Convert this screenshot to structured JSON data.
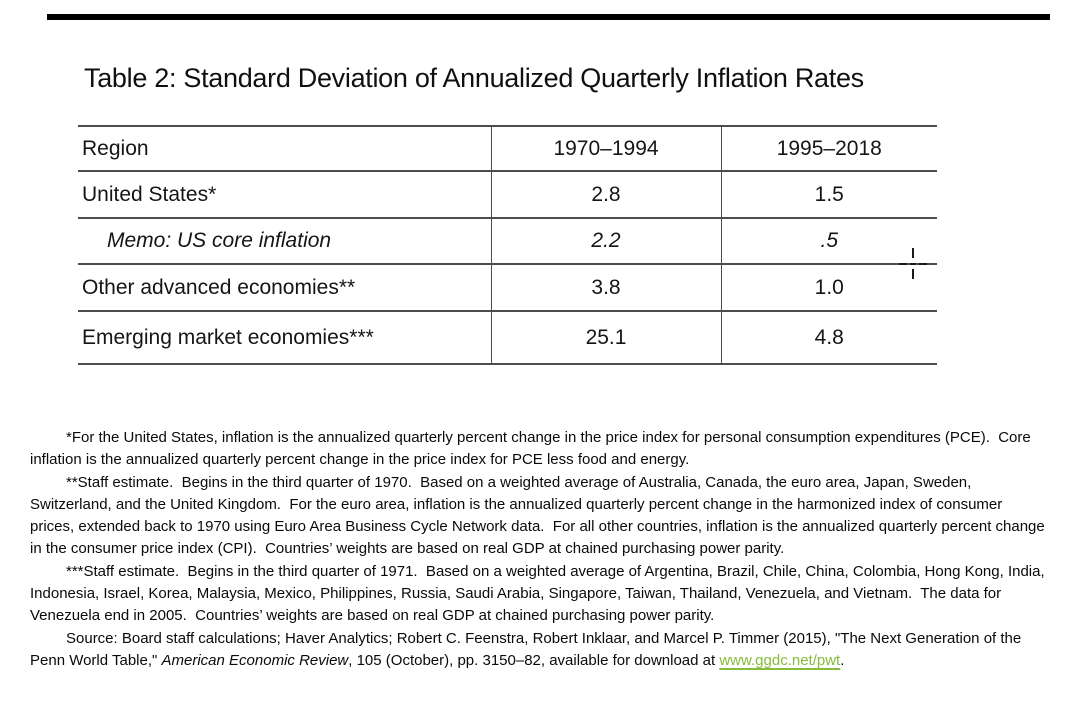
{
  "title": "Table 2: Standard Deviation of Annualized Quarterly Inflation Rates",
  "table": {
    "columns": [
      "Region",
      "1970–1994",
      "1995–2018"
    ],
    "rows": [
      {
        "region": "United States*",
        "period1": "2.8",
        "period2": "1.5"
      },
      {
        "region": "Memo: US core inflation",
        "period1": "2.2",
        "period2": ".5"
      },
      {
        "region": "Other advanced economies**",
        "period1": "3.8",
        "period2": "1.0"
      },
      {
        "region": "Emerging market economies***",
        "period1": "25.1",
        "period2": "4.8"
      }
    ]
  },
  "footnotes": {
    "pce": "*For the United States, inflation is the annualized quarterly percent change in the price index for personal consumption expenditures (PCE).  Core inflation is the annualized quarterly percent change in the price index for PCE less food and energy.",
    "advanced": "**Staff estimate.  Begins in the third quarter of 1970.  Based on a weighted average of Australia, Canada, the euro area, Japan, Sweden, Switzerland, and the United Kingdom.  For the euro area, inflation is the annualized quarterly percent change in the harmonized index of consumer prices, extended back to 1970 using Euro Area Business Cycle Network data.  For all other countries, inflation is the annualized quarterly percent change in the consumer price index (CPI).  Countries’ weights are based on real GDP at chained purchasing power parity.",
    "emerging": "***Staff estimate.  Begins in the third quarter of 1971.  Based on a weighted average of Argentina, Brazil, Chile, China, Colombia, Hong Kong, India, Indonesia, Israel, Korea, Malaysia, Mexico, Philippines, Russia, Saudi Arabia, Singapore, Taiwan, Thailand, Venezuela, and Vietnam.  The data for Venezuela end in 2005.  Countries’ weights are based on real GDP at chained purchasing power parity.",
    "source": {
      "pre": "Source: Board staff calculations; Haver Analytics; Robert C. Feenstra, Robert Inklaar, and Marcel P. Timmer (2015), \"The Next Generation of the Penn World Table,\" ",
      "journal": "American Economic Review",
      "mid": ", 105 (October), pp. 3150–82, available for download at ",
      "link": "www.ggdc.net/pwt",
      "post": "."
    }
  },
  "colors": {
    "link_green": "#86bc3a",
    "table_border": "#4d4d4d",
    "top_rule": "#000000"
  }
}
